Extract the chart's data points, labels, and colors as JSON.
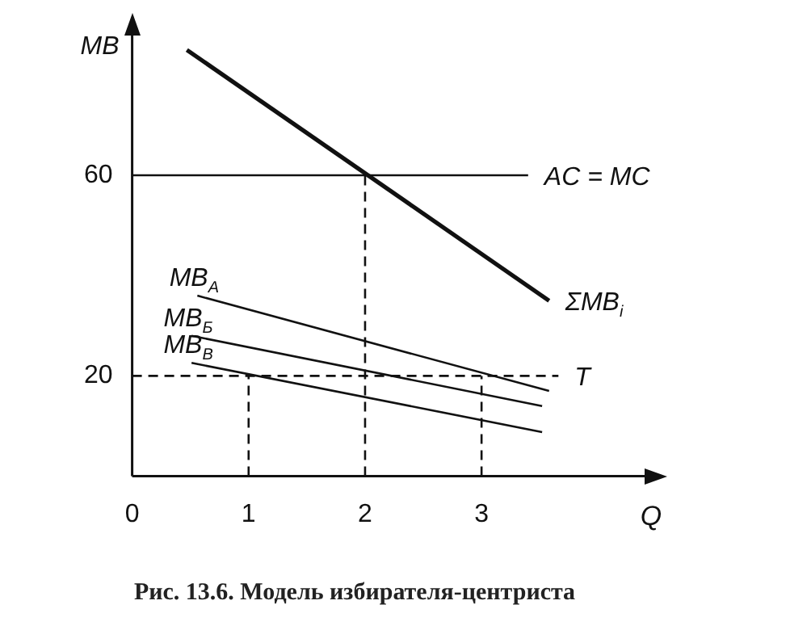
{
  "chart_data": {
    "type": "line",
    "title": "Рис. 13.6. Модель избирателя-центриста",
    "xlabel": "Q",
    "ylabel": "MB",
    "xlim": [
      0,
      4.4
    ],
    "ylim": [
      0,
      88
    ],
    "xticks": [
      0,
      1,
      2,
      3
    ],
    "yticks": [
      20,
      60
    ],
    "grid": false,
    "legend": false,
    "marker": "none",
    "series": [
      {
        "name": "ΣMB$_{i}$",
        "color": "#111111",
        "x": [
          0.47,
          3.58
        ],
        "values": [
          85,
          35
        ],
        "line_style": "solid"
      },
      {
        "name": "AC = MC",
        "color": "#111111",
        "x": [
          0,
          3.4
        ],
        "values": [
          60,
          60
        ],
        "line_style": "solid"
      },
      {
        "name": "T",
        "color": "#111111",
        "x": [
          0,
          3.66
        ],
        "values": [
          20,
          20
        ],
        "line_style": "dashed"
      },
      {
        "name": "MB$_{А}$",
        "color": "#111111",
        "x": [
          0.56,
          3.58
        ],
        "values": [
          36,
          17
        ],
        "line_style": "solid"
      },
      {
        "name": "MB$_{Б}$",
        "color": "#111111",
        "x": [
          0.51,
          3.52
        ],
        "values": [
          28,
          14
        ],
        "line_style": "solid"
      },
      {
        "name": "MB$_{В}$",
        "color": "#111111",
        "x": [
          0.51,
          3.52
        ],
        "values": [
          22.6,
          8.8
        ],
        "line_style": "solid"
      },
      {
        "color": "#111111",
        "x": [
          1,
          1
        ],
        "values": [
          0,
          20
        ],
        "line_style": "dashed"
      },
      {
        "color": "#111111",
        "x": [
          2,
          2
        ],
        "values": [
          0,
          60
        ],
        "line_style": "dashed"
      },
      {
        "color": "#111111",
        "x": [
          3,
          3
        ],
        "values": [
          0,
          20
        ],
        "line_style": "dashed"
      }
    ]
  }
}
